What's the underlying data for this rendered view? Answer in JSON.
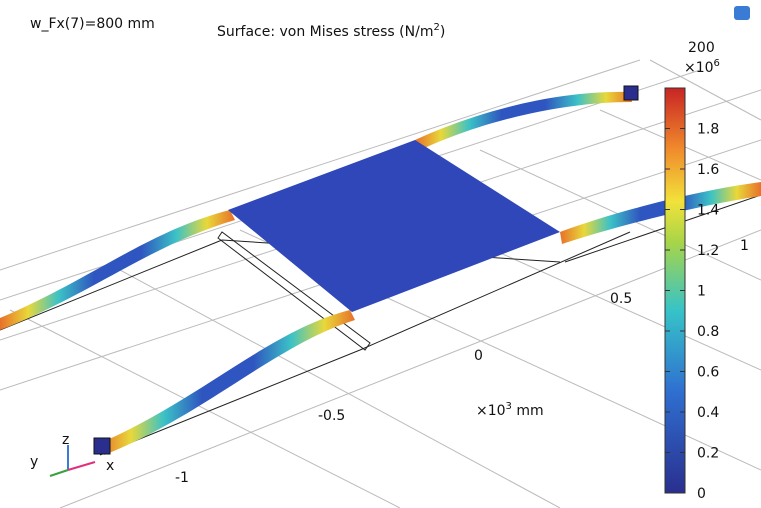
{
  "header": {
    "parameter": "w_Fx(7)=800 mm",
    "title": "Surface: von Mises stress (N/m",
    "title_sup": "2",
    "title_end": ")"
  },
  "colorbar": {
    "top_label": "200",
    "multiplier": "×10",
    "exponent": "6",
    "ticks": [
      0,
      0.2,
      0.4,
      0.6,
      0.8,
      1,
      1.2,
      1.4,
      1.6,
      1.8
    ]
  },
  "axes": {
    "x_labels": [
      "-1",
      "-0.5",
      "0",
      "0.5",
      "1"
    ],
    "unit_prefix": "×10",
    "unit_exponent": "3",
    "unit": " mm"
  },
  "triad": {
    "z": "z",
    "y": "y",
    "x": "x"
  }
}
